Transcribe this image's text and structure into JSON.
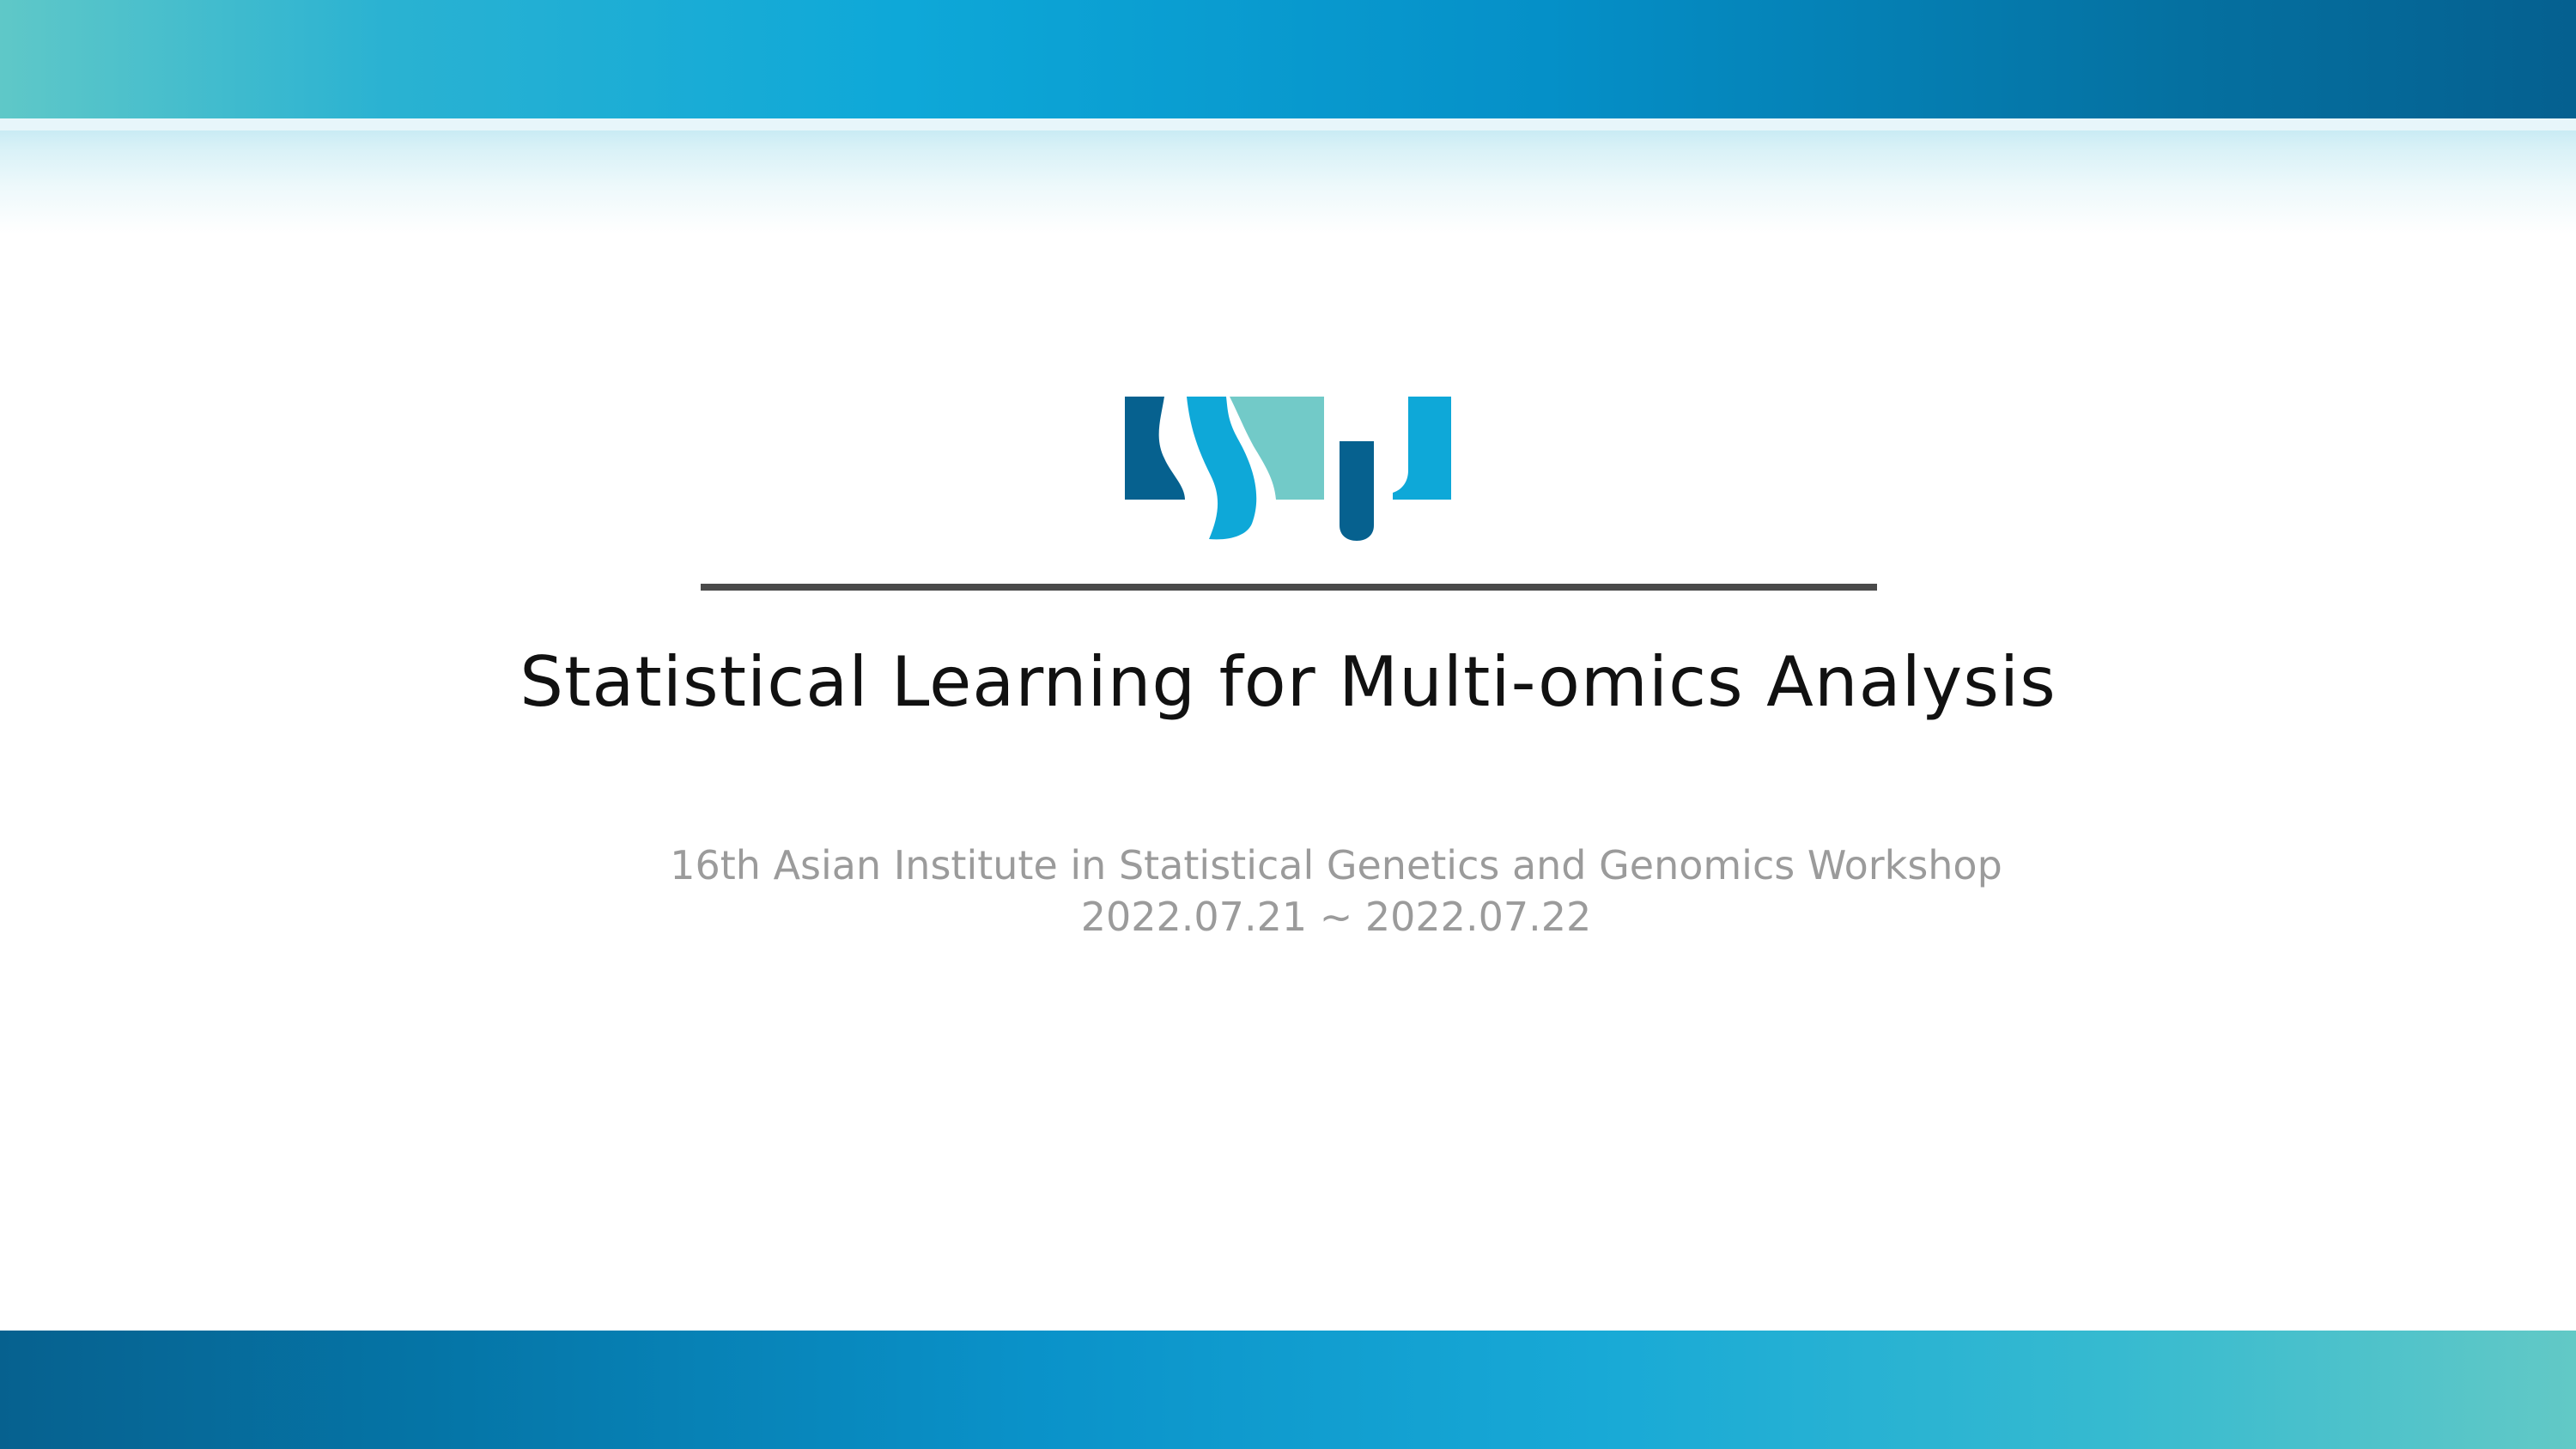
{
  "slide": {
    "title": "Statistical Learning for Multi-omics Analysis",
    "subtitle_line1": "16th Asian Institute in Statistical Genetics and Genomics Workshop",
    "subtitle_line2": "2022.07.21 ~ 2022.07.22"
  },
  "logo": {
    "icon": "ssu-logo-icon",
    "colors": {
      "dark_blue": "#06618f",
      "mid_blue": "#0ea8d8",
      "teal": "#72cac8"
    }
  },
  "theme": {
    "band_gradient_start": "#5fc8c8",
    "band_gradient_end": "#056090",
    "divider": "#4a4a4a",
    "title_color": "#111111",
    "subtitle_color": "#9b9b9b"
  }
}
